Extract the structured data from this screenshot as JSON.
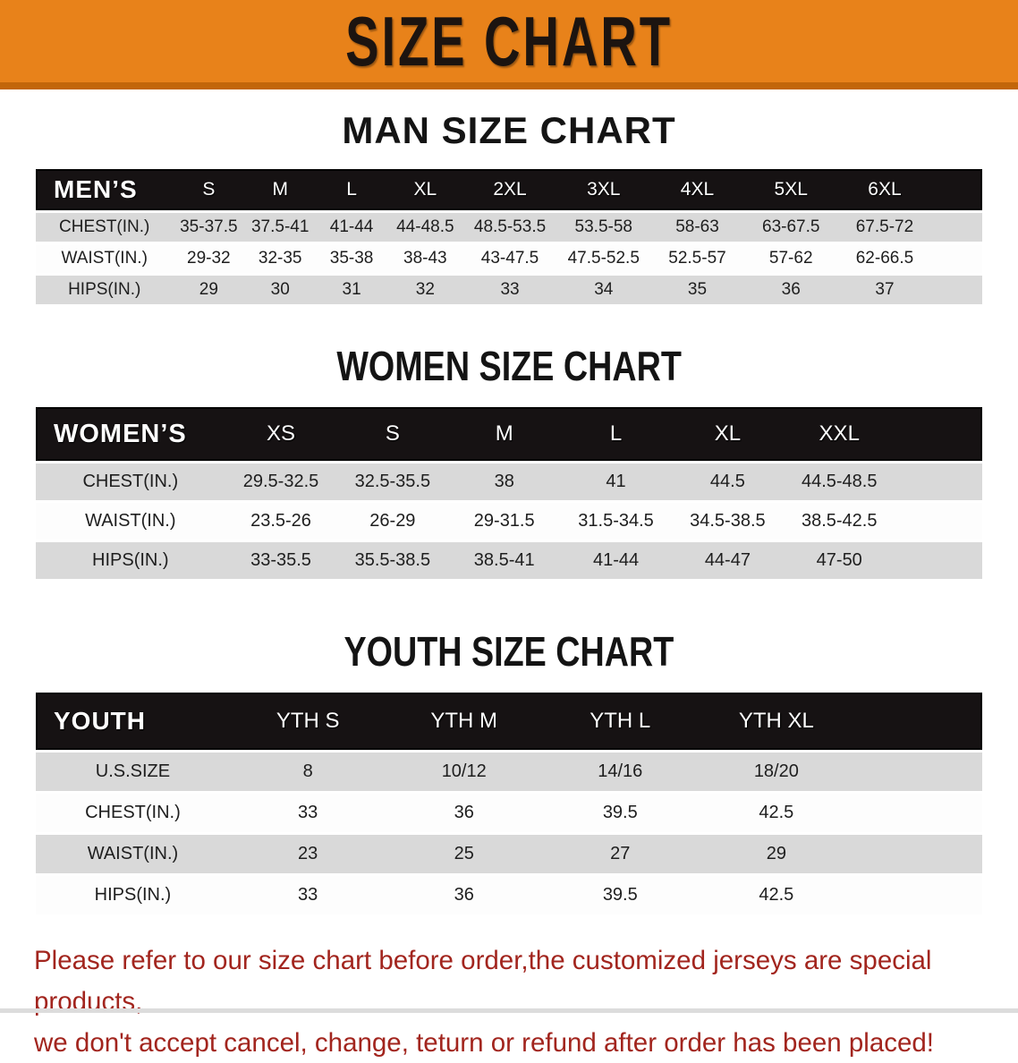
{
  "banner": {
    "title": "SIZE CHART"
  },
  "colors": {
    "banner_orange": "#e8821a",
    "banner_orange_dark": "#c2660a",
    "header_black": "#161213",
    "row_gray": "#d9d9d9",
    "row_white": "#fdfdfd",
    "note_red": "#a2251e"
  },
  "sections": {
    "men": {
      "title": "MAN SIZE CHART",
      "table": {
        "corner": "MEN’S",
        "columns": [
          "S",
          "M",
          "L",
          "XL",
          "2XL",
          "3XL",
          "4XL",
          "5XL",
          "6XL"
        ],
        "rows": [
          {
            "label": "CHEST(IN.)",
            "values": [
              "35-37.5",
              "37.5-41",
              "41-44",
              "44-48.5",
              "48.5-53.5",
              "53.5-58",
              "58-63",
              "63-67.5",
              "67.5-72"
            ]
          },
          {
            "label": "WAIST(IN.)",
            "values": [
              "29-32",
              "32-35",
              "35-38",
              "38-43",
              "43-47.5",
              "47.5-52.5",
              "52.5-57",
              "57-62",
              "62-66.5"
            ]
          },
          {
            "label": "HIPS(IN.)",
            "values": [
              "29",
              "30",
              "31",
              "32",
              "33",
              "34",
              "35",
              "36",
              "37"
            ]
          }
        ]
      }
    },
    "women": {
      "title": "WOMEN SIZE CHART",
      "table": {
        "corner": "WOMEN’S",
        "columns": [
          "XS",
          "S",
          "M",
          "L",
          "XL",
          "XXL"
        ],
        "rows": [
          {
            "label": "CHEST(IN.)",
            "values": [
              "29.5-32.5",
              "32.5-35.5",
              "38",
              "41",
              "44.5",
              "44.5-48.5"
            ]
          },
          {
            "label": "WAIST(IN.)",
            "values": [
              "23.5-26",
              "26-29",
              "29-31.5",
              "31.5-34.5",
              "34.5-38.5",
              "38.5-42.5"
            ]
          },
          {
            "label": "HIPS(IN.)",
            "values": [
              "33-35.5",
              "35.5-38.5",
              "38.5-41",
              "41-44",
              "44-47",
              "47-50"
            ]
          }
        ]
      }
    },
    "youth": {
      "title": "YOUTH SIZE CHART",
      "table": {
        "corner": "YOUTH",
        "columns": [
          "YTH S",
          "YTH M",
          "YTH L",
          "YTH XL"
        ],
        "rows": [
          {
            "label": "U.S.SIZE",
            "values": [
              "8",
              "10/12",
              "14/16",
              "18/20"
            ]
          },
          {
            "label": "CHEST(IN.)",
            "values": [
              "33",
              "36",
              "39.5",
              "42.5"
            ]
          },
          {
            "label": "WAIST(IN.)",
            "values": [
              "23",
              "25",
              "27",
              "29"
            ]
          },
          {
            "label": "HIPS(IN.)",
            "values": [
              "33",
              "36",
              "39.5",
              "42.5"
            ]
          }
        ]
      }
    }
  },
  "footer": {
    "line1": "Please refer to our size chart before order,the customized jerseys are special products,",
    "line2": "we don't accept cancel, change, teturn or refund after order has been placed!"
  }
}
